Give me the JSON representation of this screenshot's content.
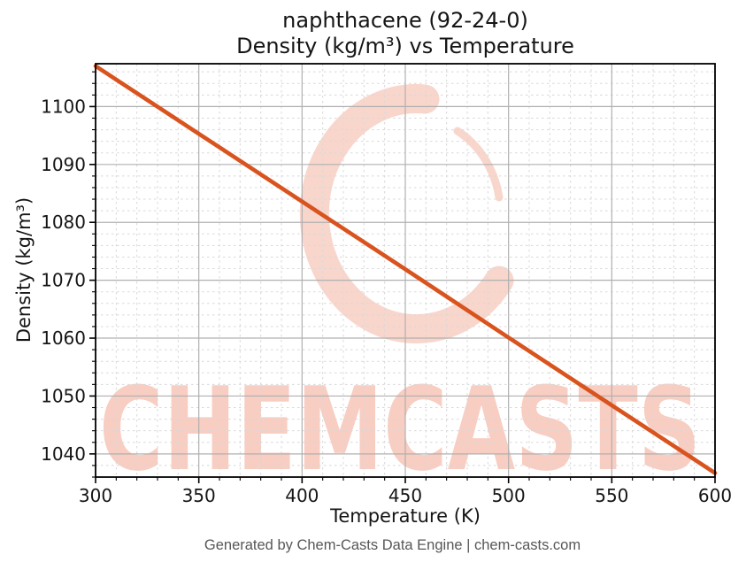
{
  "title": {
    "line1": "naphthacene (92-24-0)",
    "line2": "Density (kg/m³) vs Temperature"
  },
  "footer": "Generated by Chem-Casts Data Engine | chem-casts.com",
  "watermark": {
    "text": "CHEMCASTS",
    "logo": "chemcasts-brush-circle-logo"
  },
  "colors": {
    "line": "#d9531e",
    "watermark": "#f8cdc2",
    "watermark_logo": "#f9d6cc",
    "grid_major": "#b0b0b0",
    "grid_minor": "#d8d8d8",
    "axis": "#000000",
    "tick_label": "#151515",
    "footer_text": "#575757"
  },
  "chart_data": {
    "type": "line",
    "title": "naphthacene (92-24-0)\nDensity (kg/m³) vs Temperature",
    "xlabel": "Temperature (K)",
    "ylabel": "Density (kg/m³)",
    "xlim": [
      300,
      600
    ],
    "ylim": [
      1036.0,
      1107.4
    ],
    "xticks": [
      300,
      350,
      400,
      450,
      500,
      550,
      600
    ],
    "yticks": [
      1040,
      1050,
      1060,
      1070,
      1080,
      1090,
      1100
    ],
    "minor_x_step": 10,
    "minor_y_step": 2,
    "grid": "major-solid, minor-dashed",
    "legend": "none",
    "series": [
      {
        "name": "density",
        "color": "#d9531e",
        "linewidth": 4.6,
        "x": [
          300,
          350,
          400,
          450,
          500,
          550,
          600
        ],
        "y": [
          1107.0,
          1095.3,
          1083.6,
          1071.9,
          1060.1,
          1048.4,
          1036.7
        ]
      }
    ]
  }
}
